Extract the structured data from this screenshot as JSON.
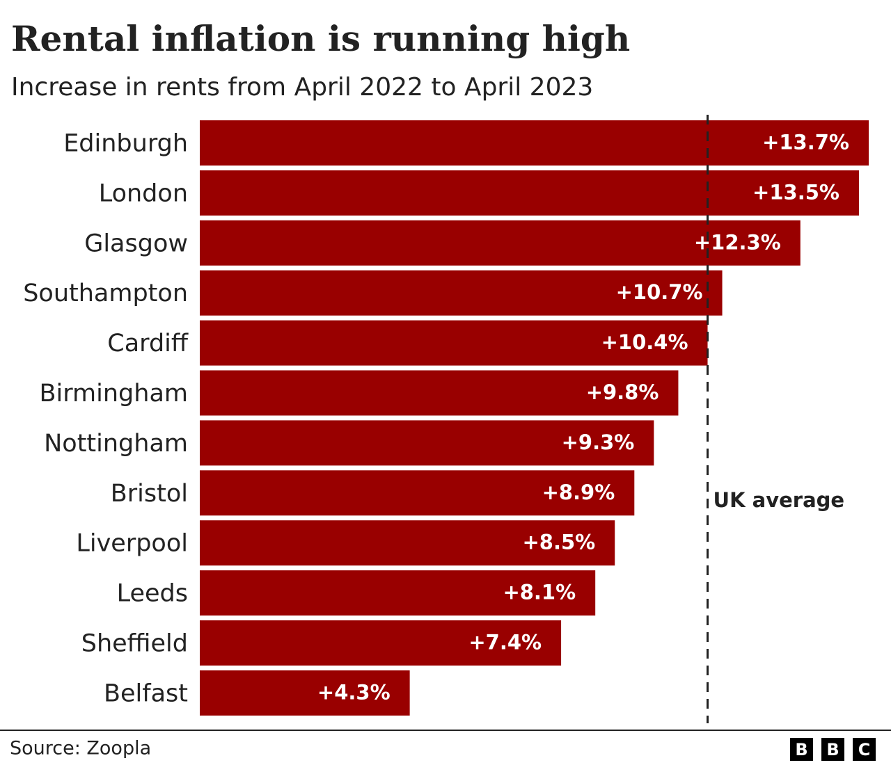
{
  "chart_data": {
    "type": "barh",
    "title": "Rental inflation is running high",
    "subtitle": "Increase in rents from April 2022 to April 2023",
    "categories": [
      "Edinburgh",
      "London",
      "Glasgow",
      "Southampton",
      "Cardiff",
      "Birmingham",
      "Nottingham",
      "Bristol",
      "Liverpool",
      "Leeds",
      "Sheffield",
      "Belfast"
    ],
    "values": [
      13.7,
      13.5,
      12.3,
      10.7,
      10.4,
      9.8,
      9.3,
      8.9,
      8.5,
      8.1,
      7.4,
      4.3
    ],
    "value_labels": [
      "+13.7%",
      "+13.5%",
      "+12.3%",
      "+10.7%",
      "+10.4%",
      "+9.8%",
      "+9.3%",
      "+8.9%",
      "+8.5%",
      "+8.1%",
      "+7.4%",
      "+4.3%"
    ],
    "color": "#990000",
    "reference_line": {
      "value": 10.4,
      "label": "UK average"
    },
    "source": "Source: Zoopla",
    "logo": [
      "B",
      "B",
      "C"
    ]
  }
}
